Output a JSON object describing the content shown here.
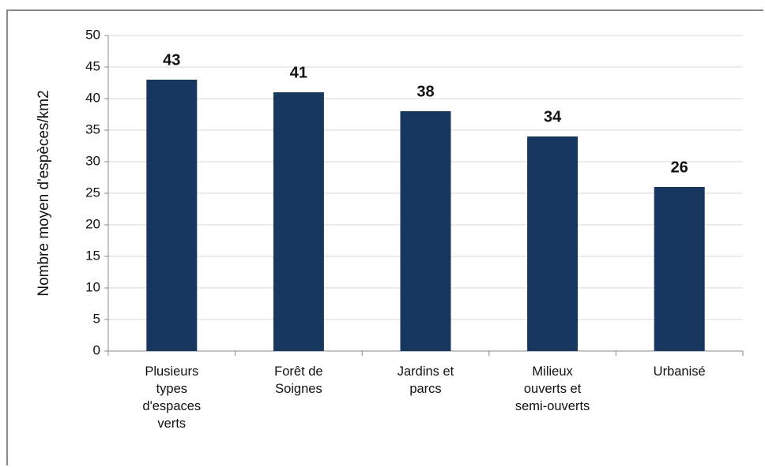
{
  "chart_data": {
    "type": "bar",
    "y_label": "Nombre moyen d'espèces/km2",
    "categories": [
      "Plusieurs types d'espaces verts",
      "Forêt de Soignes",
      "Jardins et parcs",
      "Milieux ouverts et semi-ouverts",
      "Urbanisé"
    ],
    "values": [
      43,
      41,
      38,
      34,
      26
    ],
    "color": "#17375e",
    "ylim": [
      0,
      50
    ],
    "yticks": [
      0,
      5,
      10,
      15,
      20,
      25,
      30,
      35,
      40,
      45,
      50
    ],
    "grid": true
  }
}
